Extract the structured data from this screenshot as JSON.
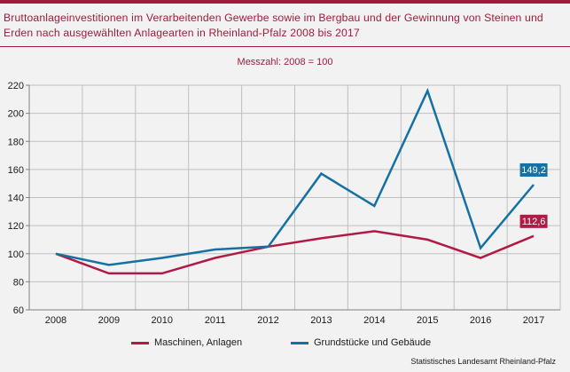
{
  "title": "Bruttoanlageinvestitionen im Verarbeitenden Gewerbe sowie im Bergbau und der Gewinnung von Steinen und Erden nach ausgewählten Anlagearten in Rheinland-Pfalz 2008 bis 2017",
  "subtitle": "Messzahl: 2008 = 100",
  "source": "Statistisches Landesamt Rheinland-Pfalz",
  "colors": {
    "accent": "#9e1b3c",
    "maschinen": "#b01a45",
    "grundstuecke": "#1471a1"
  },
  "chart_data": {
    "type": "line",
    "categories": [
      "2008",
      "2009",
      "2010",
      "2011",
      "2012",
      "2013",
      "2014",
      "2015",
      "2016",
      "2017"
    ],
    "ylim": [
      60,
      220
    ],
    "yticks": [
      60,
      80,
      100,
      120,
      140,
      160,
      180,
      200,
      220
    ],
    "grid": true,
    "legend_position": "bottom",
    "series": [
      {
        "name": "Maschinen, Anlagen",
        "color": "#b01a45",
        "values": [
          100,
          86,
          86,
          97,
          105,
          111,
          116,
          110,
          97,
          112.6
        ],
        "end_label": "112,6"
      },
      {
        "name": "Grundstücke und Gebäude",
        "color": "#1471a1",
        "values": [
          100,
          92,
          97,
          103,
          105,
          157,
          134,
          216,
          104,
          149.2
        ],
        "end_label": "149,2"
      }
    ]
  }
}
